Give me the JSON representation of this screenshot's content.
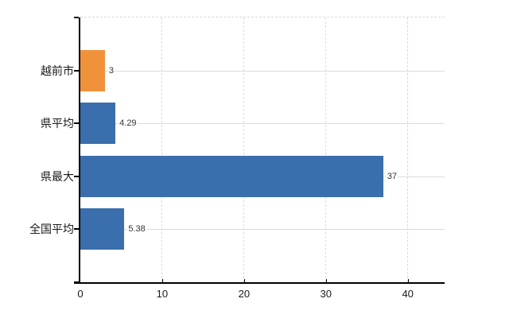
{
  "chart_data": {
    "type": "bar",
    "orientation": "horizontal",
    "title": "",
    "xlabel": "",
    "ylabel": "",
    "categories": [
      "越前市",
      "県平均",
      "県最大",
      "全国平均"
    ],
    "values": [
      3,
      4.29,
      37,
      5.38
    ],
    "value_labels": [
      "3",
      "4.29",
      "37",
      "5.38"
    ],
    "x_ticks": [
      0,
      10,
      20,
      30,
      40
    ],
    "x_tick_labels": [
      "0",
      "10",
      "20",
      "30",
      "40"
    ],
    "xlim": [
      0,
      44.5
    ],
    "grid": {
      "show": true,
      "vertical_style": "dashed",
      "horizontal_style": "solid",
      "horizontal_position": "category-centers"
    },
    "legend": {
      "show": false
    },
    "colors": {
      "bar_colors": [
        "#F0923C",
        "#3A6EAD",
        "#3A6EAD",
        "#3A6EAD"
      ],
      "bar_highlight": "#F0923C",
      "bar_default": "#3A6EAD",
      "gridline_horizontal": "#D7DED4",
      "gridline_vertical": "#D9DAE2",
      "axis": "#000000",
      "category_text": "#1A1A1A",
      "tick_text": "#1A1A1A",
      "value_text": "#333333",
      "background": "#FFFFFF"
    }
  }
}
